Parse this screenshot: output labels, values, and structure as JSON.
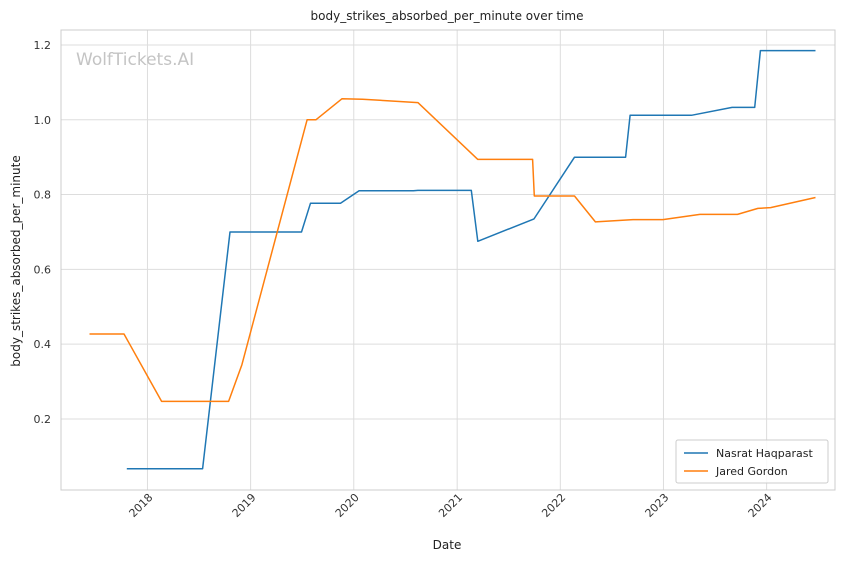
{
  "chart_data": {
    "type": "line",
    "title": "body_strikes_absorbed_per_minute over time",
    "xlabel": "Date",
    "ylabel": "body_strikes_absorbed_per_minute",
    "watermark": "WolfTickets.AI",
    "x_ticks": [
      "2018",
      "2019",
      "2020",
      "2021",
      "2022",
      "2023",
      "2024"
    ],
    "y_ticks": [
      "0.2",
      "0.4",
      "0.6",
      "0.8",
      "1.0",
      "1.2"
    ],
    "xlim": [
      "2017-03-01",
      "2024-08-30"
    ],
    "ylim": [
      0.01,
      1.24
    ],
    "grid": true,
    "legend_position": "bottom-right",
    "series": [
      {
        "name": "Nasrat Haqparast",
        "color": "#1f77b4",
        "points": [
          [
            "2017-10-20",
            0.067
          ],
          [
            "2018-07-15",
            0.067
          ],
          [
            "2018-10-20",
            0.7
          ],
          [
            "2019-06-30",
            0.7
          ],
          [
            "2019-08-01",
            0.777
          ],
          [
            "2019-11-15",
            0.777
          ],
          [
            "2020-01-20",
            0.81
          ],
          [
            "2020-07-30",
            0.81
          ],
          [
            "2020-08-15",
            0.811
          ],
          [
            "2021-02-20",
            0.811
          ],
          [
            "2021-03-15",
            0.675
          ],
          [
            "2021-09-30",
            0.735
          ],
          [
            "2022-02-20",
            0.9
          ],
          [
            "2022-08-20",
            0.9
          ],
          [
            "2022-09-05",
            1.012
          ],
          [
            "2023-04-10",
            1.012
          ],
          [
            "2023-09-01",
            1.033
          ],
          [
            "2023-11-20",
            1.033
          ],
          [
            "2023-12-10",
            1.185
          ],
          [
            "2024-06-22",
            1.185
          ]
        ]
      },
      {
        "name": "Jared Gordon",
        "color": "#ff7f0e",
        "points": [
          [
            "2017-06-10",
            0.427
          ],
          [
            "2017-10-10",
            0.427
          ],
          [
            "2018-02-20",
            0.247
          ],
          [
            "2018-10-15",
            0.247
          ],
          [
            "2018-12-01",
            0.345
          ],
          [
            "2019-07-20",
            1.0
          ],
          [
            "2019-08-20",
            1.0
          ],
          [
            "2019-11-20",
            1.056
          ],
          [
            "2020-02-01",
            1.055
          ],
          [
            "2020-08-15",
            1.046
          ],
          [
            "2021-03-15",
            0.894
          ],
          [
            "2021-09-25",
            0.894
          ],
          [
            "2021-10-01",
            0.796
          ],
          [
            "2022-02-20",
            0.796
          ],
          [
            "2022-05-05",
            0.727
          ],
          [
            "2022-09-15",
            0.733
          ],
          [
            "2022-12-30",
            0.733
          ],
          [
            "2023-05-10",
            0.747
          ],
          [
            "2023-09-20",
            0.747
          ],
          [
            "2023-12-01",
            0.763
          ],
          [
            "2024-01-15",
            0.765
          ],
          [
            "2024-06-22",
            0.792
          ]
        ]
      }
    ]
  }
}
